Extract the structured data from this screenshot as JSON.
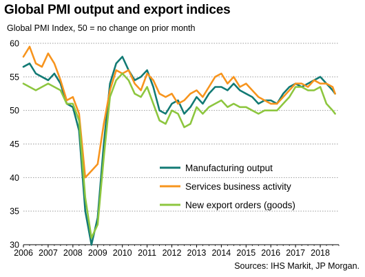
{
  "chart_data": {
    "type": "line",
    "title": "Global PMI output and export indices",
    "subtitle": "Global  PMI Index, 50 = no change on prior month",
    "source": "Sources: IHS Markit, JP Morgan.",
    "ylim": [
      30,
      60
    ],
    "yticks": [
      "30",
      "35",
      "40",
      "45",
      "50",
      "55",
      "60"
    ],
    "xlim": [
      2006.0,
      2018.75
    ],
    "xticks": [
      "2006",
      "2007",
      "2008",
      "2009",
      "2010",
      "2011",
      "2012",
      "2013",
      "2014",
      "2015",
      "2016",
      "2017",
      "2018"
    ],
    "grid": "horizontal dotted",
    "legend": "bottom-right",
    "series": [
      {
        "name": "Manufacturing output",
        "color": "#127a74",
        "x": [
          2006.0,
          2006.25,
          2006.5,
          2006.75,
          2007.0,
          2007.25,
          2007.5,
          2007.75,
          2008.0,
          2008.25,
          2008.5,
          2008.75,
          2009.0,
          2009.25,
          2009.5,
          2009.75,
          2010.0,
          2010.25,
          2010.5,
          2010.75,
          2011.0,
          2011.25,
          2011.5,
          2011.75,
          2012.0,
          2012.25,
          2012.5,
          2012.75,
          2013.0,
          2013.25,
          2013.5,
          2013.75,
          2014.0,
          2014.25,
          2014.5,
          2014.75,
          2015.0,
          2015.25,
          2015.5,
          2015.75,
          2016.0,
          2016.25,
          2016.5,
          2016.75,
          2017.0,
          2017.25,
          2017.5,
          2017.75,
          2018.0,
          2018.25,
          2018.5,
          2018.6
        ],
        "values": [
          56.5,
          57.0,
          55.5,
          55.0,
          54.5,
          55.5,
          54.0,
          51.0,
          50.5,
          47.0,
          35.0,
          30.0,
          34.0,
          45.0,
          54.0,
          57.0,
          58.0,
          56.0,
          54.5,
          55.0,
          56.0,
          53.5,
          50.0,
          49.5,
          51.0,
          51.5,
          49.5,
          50.5,
          52.0,
          51.0,
          52.5,
          53.5,
          53.5,
          53.0,
          54.0,
          53.0,
          52.5,
          52.0,
          51.0,
          51.5,
          51.5,
          51.0,
          52.5,
          53.5,
          54.0,
          53.5,
          54.0,
          54.5,
          55.0,
          54.0,
          53.0,
          52.5
        ]
      },
      {
        "name": "Services business activity",
        "color": "#f7941d",
        "x": [
          2006.0,
          2006.25,
          2006.5,
          2006.75,
          2007.0,
          2007.25,
          2007.5,
          2007.75,
          2008.0,
          2008.25,
          2008.5,
          2008.75,
          2009.0,
          2009.25,
          2009.5,
          2009.75,
          2010.0,
          2010.25,
          2010.5,
          2010.75,
          2011.0,
          2011.25,
          2011.5,
          2011.75,
          2012.0,
          2012.25,
          2012.5,
          2012.75,
          2013.0,
          2013.25,
          2013.5,
          2013.75,
          2014.0,
          2014.25,
          2014.5,
          2014.75,
          2015.0,
          2015.25,
          2015.5,
          2015.75,
          2016.0,
          2016.25,
          2016.5,
          2016.75,
          2017.0,
          2017.25,
          2017.5,
          2017.75,
          2018.0,
          2018.25,
          2018.5,
          2018.6
        ],
        "values": [
          58.0,
          59.5,
          57.0,
          56.5,
          58.5,
          57.0,
          54.5,
          51.5,
          52.0,
          49.5,
          40.0,
          41.0,
          42.0,
          48.0,
          53.0,
          56.0,
          55.5,
          56.0,
          54.0,
          53.0,
          55.5,
          54.5,
          52.5,
          52.0,
          52.5,
          51.0,
          51.5,
          52.5,
          53.0,
          52.0,
          53.5,
          55.0,
          55.5,
          54.0,
          55.0,
          53.5,
          54.0,
          53.0,
          52.0,
          51.5,
          51.0,
          51.0,
          52.0,
          53.0,
          54.0,
          54.0,
          53.5,
          54.5,
          54.0,
          54.0,
          53.5,
          52.5
        ]
      },
      {
        "name": "New export orders (goods)",
        "color": "#8dc63f",
        "x": [
          2006.0,
          2006.25,
          2006.5,
          2006.75,
          2007.0,
          2007.25,
          2007.5,
          2007.75,
          2008.0,
          2008.25,
          2008.5,
          2008.75,
          2009.0,
          2009.25,
          2009.5,
          2009.75,
          2010.0,
          2010.25,
          2010.5,
          2010.75,
          2011.0,
          2011.25,
          2011.5,
          2011.75,
          2012.0,
          2012.25,
          2012.5,
          2012.75,
          2013.0,
          2013.25,
          2013.5,
          2013.75,
          2014.0,
          2014.25,
          2014.5,
          2014.75,
          2015.0,
          2015.25,
          2015.5,
          2015.75,
          2016.0,
          2016.25,
          2016.5,
          2016.75,
          2017.0,
          2017.25,
          2017.5,
          2017.75,
          2018.0,
          2018.25,
          2018.5,
          2018.6
        ],
        "values": [
          54.0,
          53.5,
          53.0,
          53.5,
          54.0,
          53.5,
          53.0,
          51.0,
          51.0,
          48.5,
          37.0,
          31.0,
          33.0,
          43.0,
          52.0,
          54.5,
          55.5,
          54.5,
          52.5,
          52.0,
          53.5,
          51.0,
          48.5,
          48.0,
          50.0,
          49.5,
          47.5,
          48.0,
          50.5,
          49.5,
          50.5,
          51.0,
          51.5,
          50.5,
          51.0,
          50.5,
          50.5,
          50.0,
          49.5,
          50.0,
          50.0,
          50.0,
          51.0,
          52.0,
          53.5,
          53.5,
          53.0,
          53.0,
          53.5,
          51.0,
          50.0,
          49.5
        ]
      }
    ]
  }
}
